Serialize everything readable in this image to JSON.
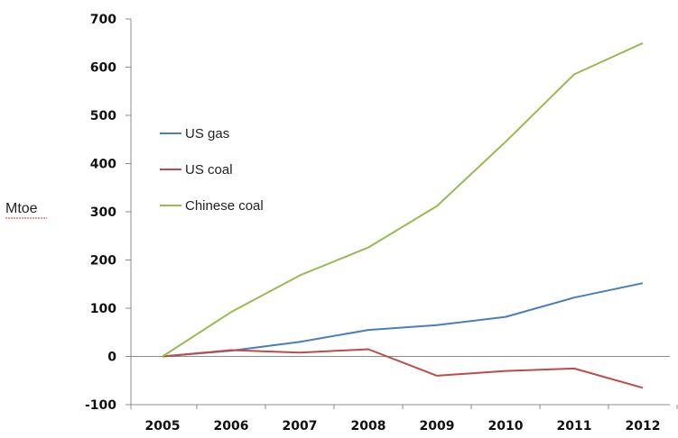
{
  "chart_data": {
    "type": "line",
    "ylabel": "Mtoe",
    "xlabel": "",
    "title": "",
    "x": [
      "2005",
      "2006",
      "2007",
      "2008",
      "2009",
      "2010",
      "2011",
      "2012"
    ],
    "yticks": [
      "700",
      "600",
      "500",
      "400",
      "300",
      "200",
      "100",
      "0",
      "-100"
    ],
    "ylim": [
      -100,
      700
    ],
    "grid": false,
    "legend_position": "left-upper inside plot",
    "series": [
      {
        "name": "US gas",
        "color": "#4a7ebb",
        "values": [
          0,
          12,
          30,
          55,
          65,
          82,
          122,
          152
        ]
      },
      {
        "name": "US coal",
        "color": "#be4b48",
        "values": [
          0,
          13,
          8,
          15,
          -40,
          -30,
          -25,
          -65
        ]
      },
      {
        "name": "Chinese coal",
        "color": "#98b954",
        "values": [
          0,
          92,
          168,
          226,
          312,
          445,
          585,
          650
        ]
      }
    ]
  }
}
